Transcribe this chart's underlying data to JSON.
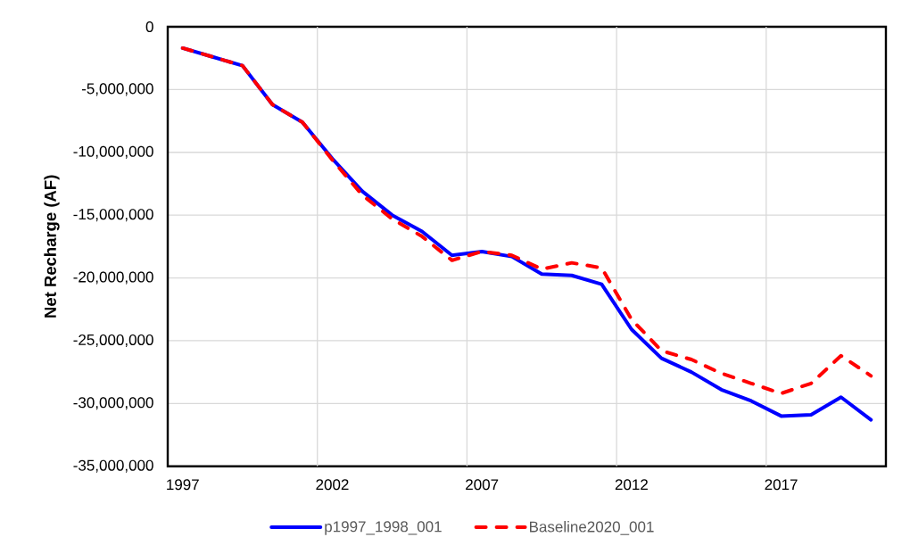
{
  "chart_data": {
    "type": "line",
    "ylabel": "Net Recharge (AF)",
    "categories": [
      "1997",
      null,
      null,
      null,
      null,
      "2002",
      null,
      null,
      null,
      null,
      "2007",
      null,
      null,
      null,
      null,
      "2012",
      null,
      null,
      null,
      null,
      "2017",
      null,
      null,
      null
    ],
    "series": [
      {
        "name": "p1997_1998_001",
        "color": "#0000ff",
        "line_style": "solid",
        "values": [
          -1700000,
          -2400000,
          -3100000,
          -6200000,
          -7600000,
          -10500000,
          -13100000,
          -15000000,
          -16300000,
          -18200000,
          -17900000,
          -18300000,
          -19700000,
          -19800000,
          -20500000,
          -24100000,
          -26400000,
          -27500000,
          -28900000,
          -29800000,
          -31000000,
          -30900000,
          -29500000,
          -31300000
        ]
      },
      {
        "name": "Baseline2020_001",
        "color": "#ff0000",
        "line_style": "dashed",
        "values": [
          -1700000,
          -2400000,
          -3100000,
          -6200000,
          -7600000,
          -10600000,
          -13400000,
          -15300000,
          -16700000,
          -18600000,
          -17900000,
          -18200000,
          -19300000,
          -18800000,
          -19200000,
          -23300000,
          -25800000,
          -26500000,
          -27600000,
          -28400000,
          -29200000,
          -28400000,
          -26200000,
          -27800000
        ]
      }
    ],
    "ylim": [
      -35000000,
      0
    ],
    "yticks": [
      {
        "value": -35000000,
        "label": "-35,000,000"
      },
      {
        "value": -30000000,
        "label": "-30,000,000"
      },
      {
        "value": -25000000,
        "label": "-25,000,000"
      },
      {
        "value": -20000000,
        "label": "-20,000,000"
      },
      {
        "value": -15000000,
        "label": "-15,000,000"
      },
      {
        "value": -10000000,
        "label": "-10,000,000"
      },
      {
        "value": -5000000,
        "label": "-5,000,000"
      },
      0
    ],
    "grid": true,
    "legend": "bottom",
    "marker": "none"
  }
}
